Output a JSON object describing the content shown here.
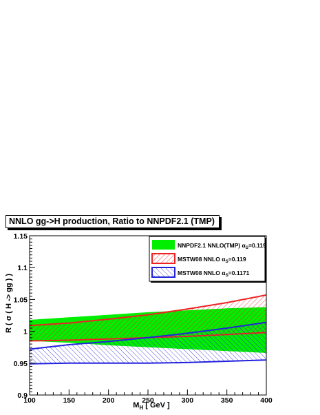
{
  "title": "NNLO gg->H production, Ratio to NNPDF2.1 (TMP)",
  "chart_data": {
    "type": "area",
    "title": "NNLO gg->H production, Ratio to NNPDF2.1 (TMP)",
    "xlabel": "M_H [ GeV ]",
    "ylabel": "R ( σ ( H -> gg ) )",
    "xlim": [
      100,
      400
    ],
    "ylim": [
      0.9,
      1.15
    ],
    "x_ticks": [
      "100",
      "150",
      "200",
      "250",
      "300",
      "350",
      "400"
    ],
    "y_ticks": [
      "0.9",
      "0.95",
      "1",
      "1.05",
      "1.1",
      "1.15"
    ],
    "legend_position": "top-right",
    "series": [
      {
        "name": "NNPDF2.1 NNLO(TMP) α_S=0.119",
        "color": "#00ee00",
        "style": "solid-band",
        "x": [
          100,
          150,
          200,
          250,
          300,
          350,
          400
        ],
        "upper": [
          1.018,
          1.022,
          1.026,
          1.03,
          1.033,
          1.036,
          1.038
        ],
        "lower": [
          0.985,
          0.982,
          0.978,
          0.975,
          0.972,
          0.969,
          0.966
        ]
      },
      {
        "name": "MSTW08 NNLO α_S=0.119",
        "color": "#ee2222",
        "style": "hatched-band",
        "x": [
          100,
          150,
          200,
          250,
          300,
          350,
          400
        ],
        "upper": [
          1.009,
          1.013,
          1.019,
          1.026,
          1.035,
          1.045,
          1.057
        ],
        "lower": [
          0.985,
          0.986,
          0.988,
          0.99,
          0.992,
          0.995,
          0.998
        ]
      },
      {
        "name": "MSTW08 NNLO α_S=0.1171",
        "color": "#2222dd",
        "style": "hatched-band",
        "x": [
          100,
          150,
          200,
          250,
          300,
          350,
          400
        ],
        "upper": [
          0.972,
          0.979,
          0.984,
          0.99,
          0.997,
          1.005,
          1.014
        ],
        "lower": [
          0.949,
          0.95,
          0.95,
          0.95,
          0.951,
          0.953,
          0.955
        ]
      }
    ]
  }
}
